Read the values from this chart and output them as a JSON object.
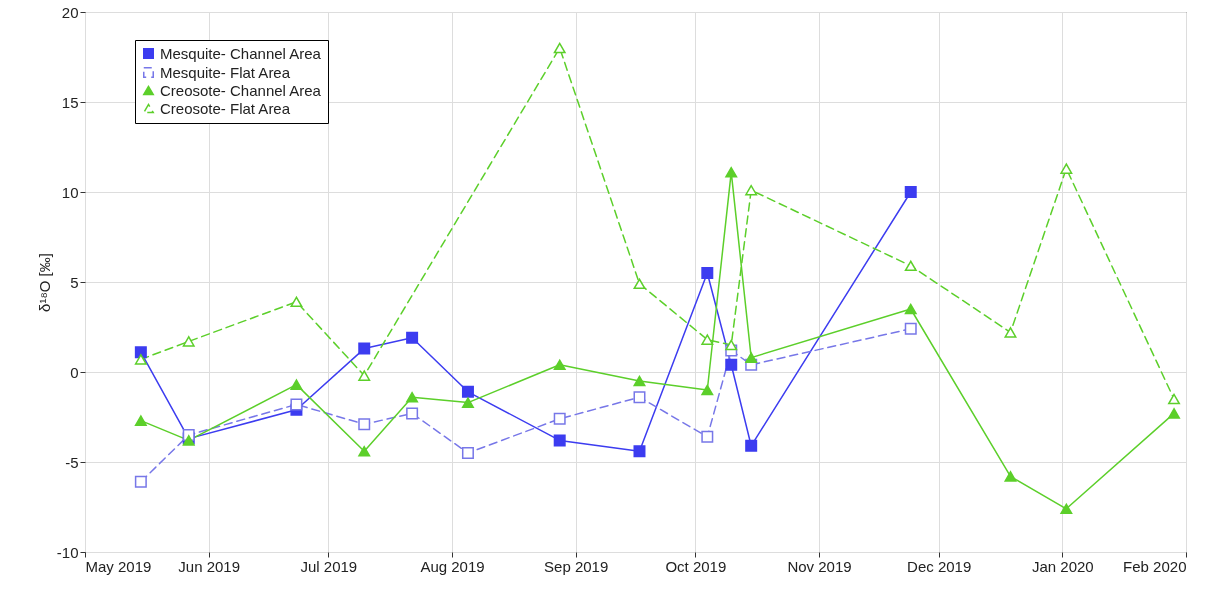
{
  "chart_data": {
    "type": "line",
    "ylabel": "δ¹⁸O [‰]",
    "x": [
      "2019-05-15",
      "2019-05-27",
      "2019-06-23",
      "2019-07-10",
      "2019-07-22",
      "2019-08-05",
      "2019-08-28",
      "2019-09-17",
      "2019-10-04",
      "2019-10-10",
      "2019-10-15",
      "2019-11-24"
    ],
    "series": [
      {
        "name": "Mesquite- Channel Area",
        "color": "#3c3cf0",
        "marker": "square",
        "line_style": "solid",
        "values": [
          1.1,
          -3.7,
          -2.1,
          1.3,
          1.9,
          -1.1,
          -3.8,
          -4.4,
          5.5,
          0.4,
          -4.1,
          10.0
        ]
      },
      {
        "name": "Mesquite- Flat Area",
        "color": "#7777e8",
        "marker": "square",
        "line_style": "dashed",
        "values": [
          -6.1,
          -3.5,
          -1.8,
          -2.9,
          -2.3,
          -4.5,
          -2.6,
          -1.4,
          -3.6,
          1.2,
          0.4,
          2.4
        ]
      },
      {
        "name": "Creosote- Channel Area",
        "color": "#5ccf2a",
        "marker": "triangle",
        "line_style": "solid",
        "x": [
          "2019-05-15",
          "2019-05-27",
          "2019-06-23",
          "2019-07-10",
          "2019-07-22",
          "2019-08-05",
          "2019-08-28",
          "2019-09-17",
          "2019-10-04",
          "2019-10-10",
          "2019-10-15",
          "2019-11-24",
          "2019-12-19",
          "2020-01-02",
          "2020-01-29"
        ],
        "values": [
          -2.7,
          -3.8,
          -0.7,
          -4.4,
          -1.4,
          -1.7,
          0.4,
          -0.5,
          -1.0,
          11.1,
          0.8,
          3.5,
          -5.8,
          -7.6,
          -2.3
        ]
      },
      {
        "name": "Creosote- Flat Area",
        "color": "#5ccf2a",
        "marker": "triangle",
        "line_style": "dashed",
        "x": [
          "2019-05-15",
          "2019-05-27",
          "2019-06-23",
          "2019-07-10",
          "2019-08-28",
          "2019-09-17",
          "2019-10-04",
          "2019-10-10",
          "2019-10-15",
          "2019-11-24",
          "2019-12-19",
          "2020-01-02",
          "2020-01-29"
        ],
        "values": [
          0.7,
          1.7,
          3.9,
          -0.2,
          18.0,
          4.9,
          1.8,
          1.5,
          10.1,
          5.9,
          2.2,
          11.3,
          -1.5
        ]
      }
    ],
    "xlim": [
      "2019-05-01",
      "2020-02-01"
    ],
    "xticks": [
      {
        "value": "2019-05-01",
        "label": "May 2019"
      },
      {
        "value": "2019-06-01",
        "label": "Jun 2019"
      },
      {
        "value": "2019-07-01",
        "label": "Jul 2019"
      },
      {
        "value": "2019-08-01",
        "label": "Aug 2019"
      },
      {
        "value": "2019-09-01",
        "label": "Sep 2019"
      },
      {
        "value": "2019-10-01",
        "label": "Oct 2019"
      },
      {
        "value": "2019-11-01",
        "label": "Nov 2019"
      },
      {
        "value": "2019-12-01",
        "label": "Dec 2019"
      },
      {
        "value": "2020-01-01",
        "label": "Jan 2020"
      },
      {
        "value": "2020-02-01",
        "label": "Feb 2020"
      }
    ],
    "ylim": [
      -10,
      20
    ],
    "yticks": [
      -10,
      -5,
      0,
      5,
      10,
      15,
      20
    ],
    "grid": true,
    "legend": "top left"
  }
}
